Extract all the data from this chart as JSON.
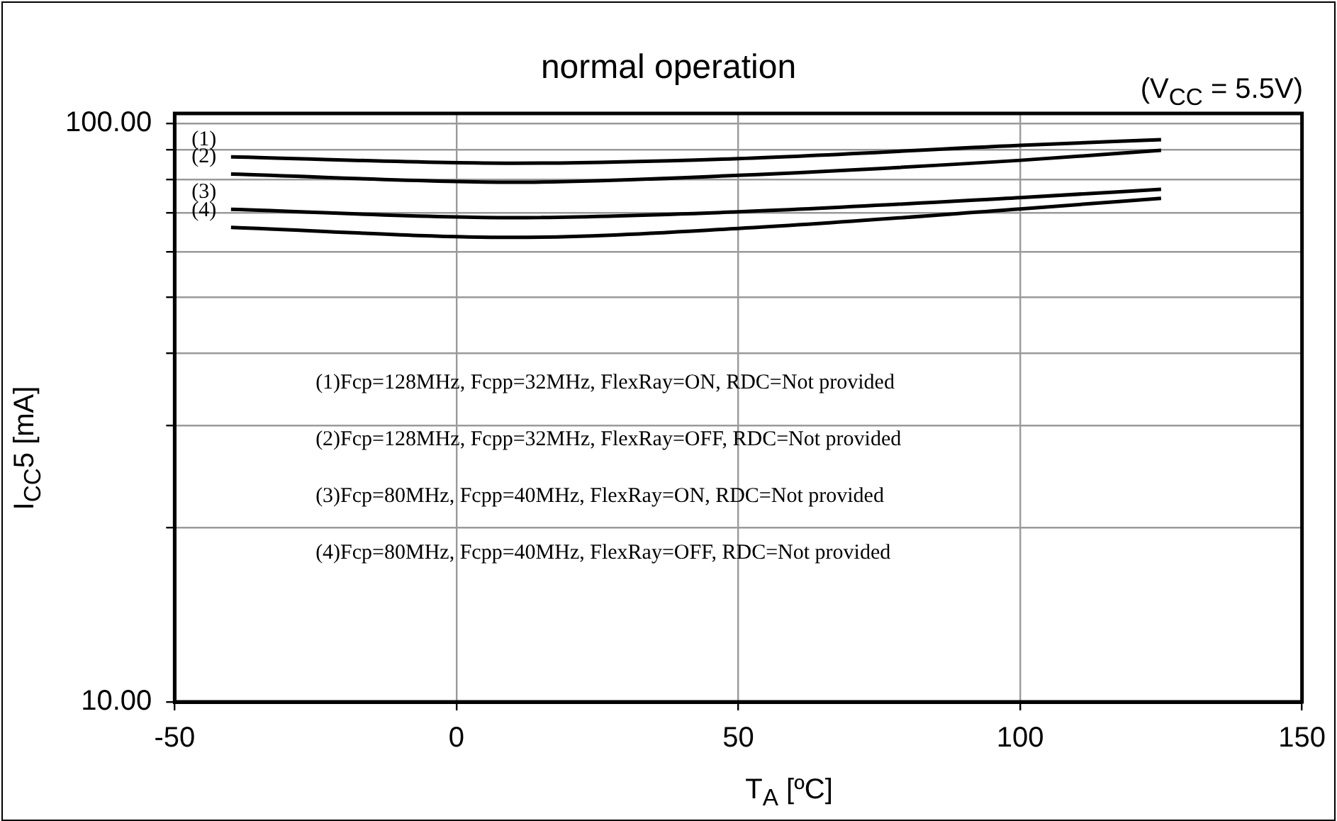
{
  "chart_data": {
    "type": "line",
    "title": "normal operation",
    "xlabel": "T$_{A}$ [ºC]",
    "ylabel": "I$_{CC}$5 [mA]",
    "x": [
      -40,
      10,
      50,
      100,
      125
    ],
    "series": [
      {
        "color": "#000000",
        "values": [
          87.5,
          85.3,
          86.9,
          91.6,
          93.7
        ]
      },
      {
        "color": "#000000",
        "values": [
          81.7,
          79.1,
          81.3,
          86.3,
          89.8
        ]
      },
      {
        "color": "#000000",
        "values": [
          71.0,
          68.7,
          70.3,
          74.4,
          76.9
        ]
      },
      {
        "color": "#000000",
        "values": [
          66.1,
          63.5,
          65.8,
          71.1,
          74.2
        ]
      }
    ],
    "xlim": [
      -50,
      150
    ],
    "xticks": [
      -50,
      0,
      50,
      100,
      150
    ],
    "ylim": [
      10,
      104
    ],
    "yticks": [
      {
        "value": 10,
        "label": "10.00"
      },
      {
        "value": 20,
        "label": null
      },
      {
        "value": 30,
        "label": null
      },
      {
        "value": 40,
        "label": null
      },
      {
        "value": 50,
        "label": null
      },
      {
        "value": 60,
        "label": null
      },
      {
        "value": 70,
        "label": null
      },
      {
        "value": 80,
        "label": null
      },
      {
        "value": 90,
        "label": null
      },
      {
        "value": 100,
        "label": "100.00"
      }
    ],
    "log": "y",
    "grid": true,
    "legend": false,
    "marker": "none",
    "line_style": "solid",
    "annotations": [
      "(V$_{CC}$ = 5.5V)",
      "(1)",
      "(2)",
      "(3)",
      "(4)",
      "(1)Fcp=128MHz, Fcpp=32MHz, FlexRay=ON, RDC=Not provided",
      "(2)Fcp=128MHz, Fcpp=32MHz, FlexRay=OFF, RDC=Not provided",
      "(3)Fcp=80MHz, Fcpp=40MHz, FlexRay=ON, RDC=Not provided",
      "(4)Fcp=80MHz, Fcpp=40MHz, FlexRay=OFF, RDC=Not provided"
    ]
  }
}
